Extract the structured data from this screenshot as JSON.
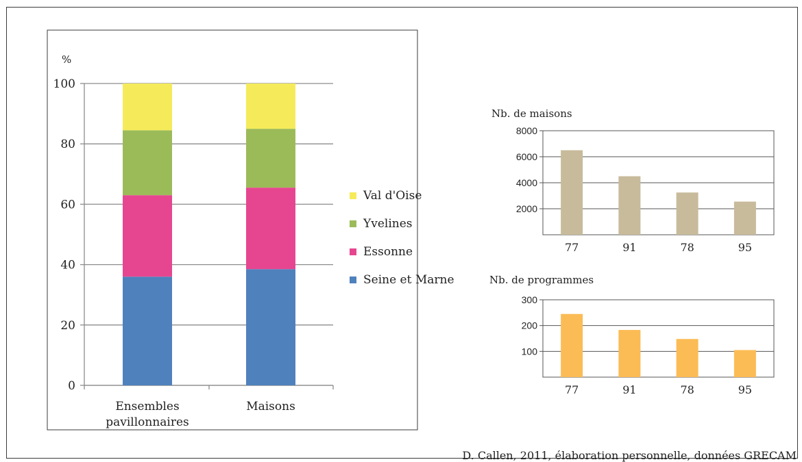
{
  "chart_data": [
    {
      "type": "bar",
      "stacked": true,
      "ylabel": "%",
      "ylim": [
        0,
        100
      ],
      "yticks": [
        0,
        20,
        40,
        60,
        80,
        100
      ],
      "grid": true,
      "legend_position": "right",
      "categories": [
        "Ensembles pavillonnaires",
        "Maisons"
      ],
      "category_labels": [
        [
          "Ensembles",
          "pavillonnaires"
        ],
        [
          "Maisons"
        ]
      ],
      "series": [
        {
          "name": "Seine et Marne",
          "color": "#4f81bd",
          "values": [
            36,
            38.5
          ]
        },
        {
          "name": "Essonne",
          "color": "#e64690",
          "values": [
            27,
            27
          ]
        },
        {
          "name": "Yvelines",
          "color": "#9bbb59",
          "values": [
            21.5,
            19.5
          ]
        },
        {
          "name": "Val d'Oise",
          "color": "#f5eb5a",
          "values": [
            15.5,
            15
          ]
        }
      ],
      "legend_order": [
        "Val d'Oise",
        "Yvelines",
        "Essonne",
        "Seine et Marne"
      ]
    },
    {
      "type": "bar",
      "title": "Nb. de maisons",
      "categories": [
        "77",
        "91",
        "78",
        "95"
      ],
      "values": [
        6500,
        4500,
        3250,
        2550
      ],
      "ylim": [
        0,
        8000
      ],
      "yticks": [
        2000,
        4000,
        6000,
        8000
      ],
      "grid": true,
      "color": "#c8bb9b"
    },
    {
      "type": "bar",
      "title": "Nb. de programmes",
      "categories": [
        "77",
        "91",
        "78",
        "95"
      ],
      "values": [
        245,
        183,
        148,
        105
      ],
      "ylim": [
        0,
        300
      ],
      "yticks": [
        100,
        200,
        300
      ],
      "grid": true,
      "color": "#fbbc55"
    }
  ],
  "caption": "D. Callen, 2011, élaboration personnelle, données GRECAM"
}
